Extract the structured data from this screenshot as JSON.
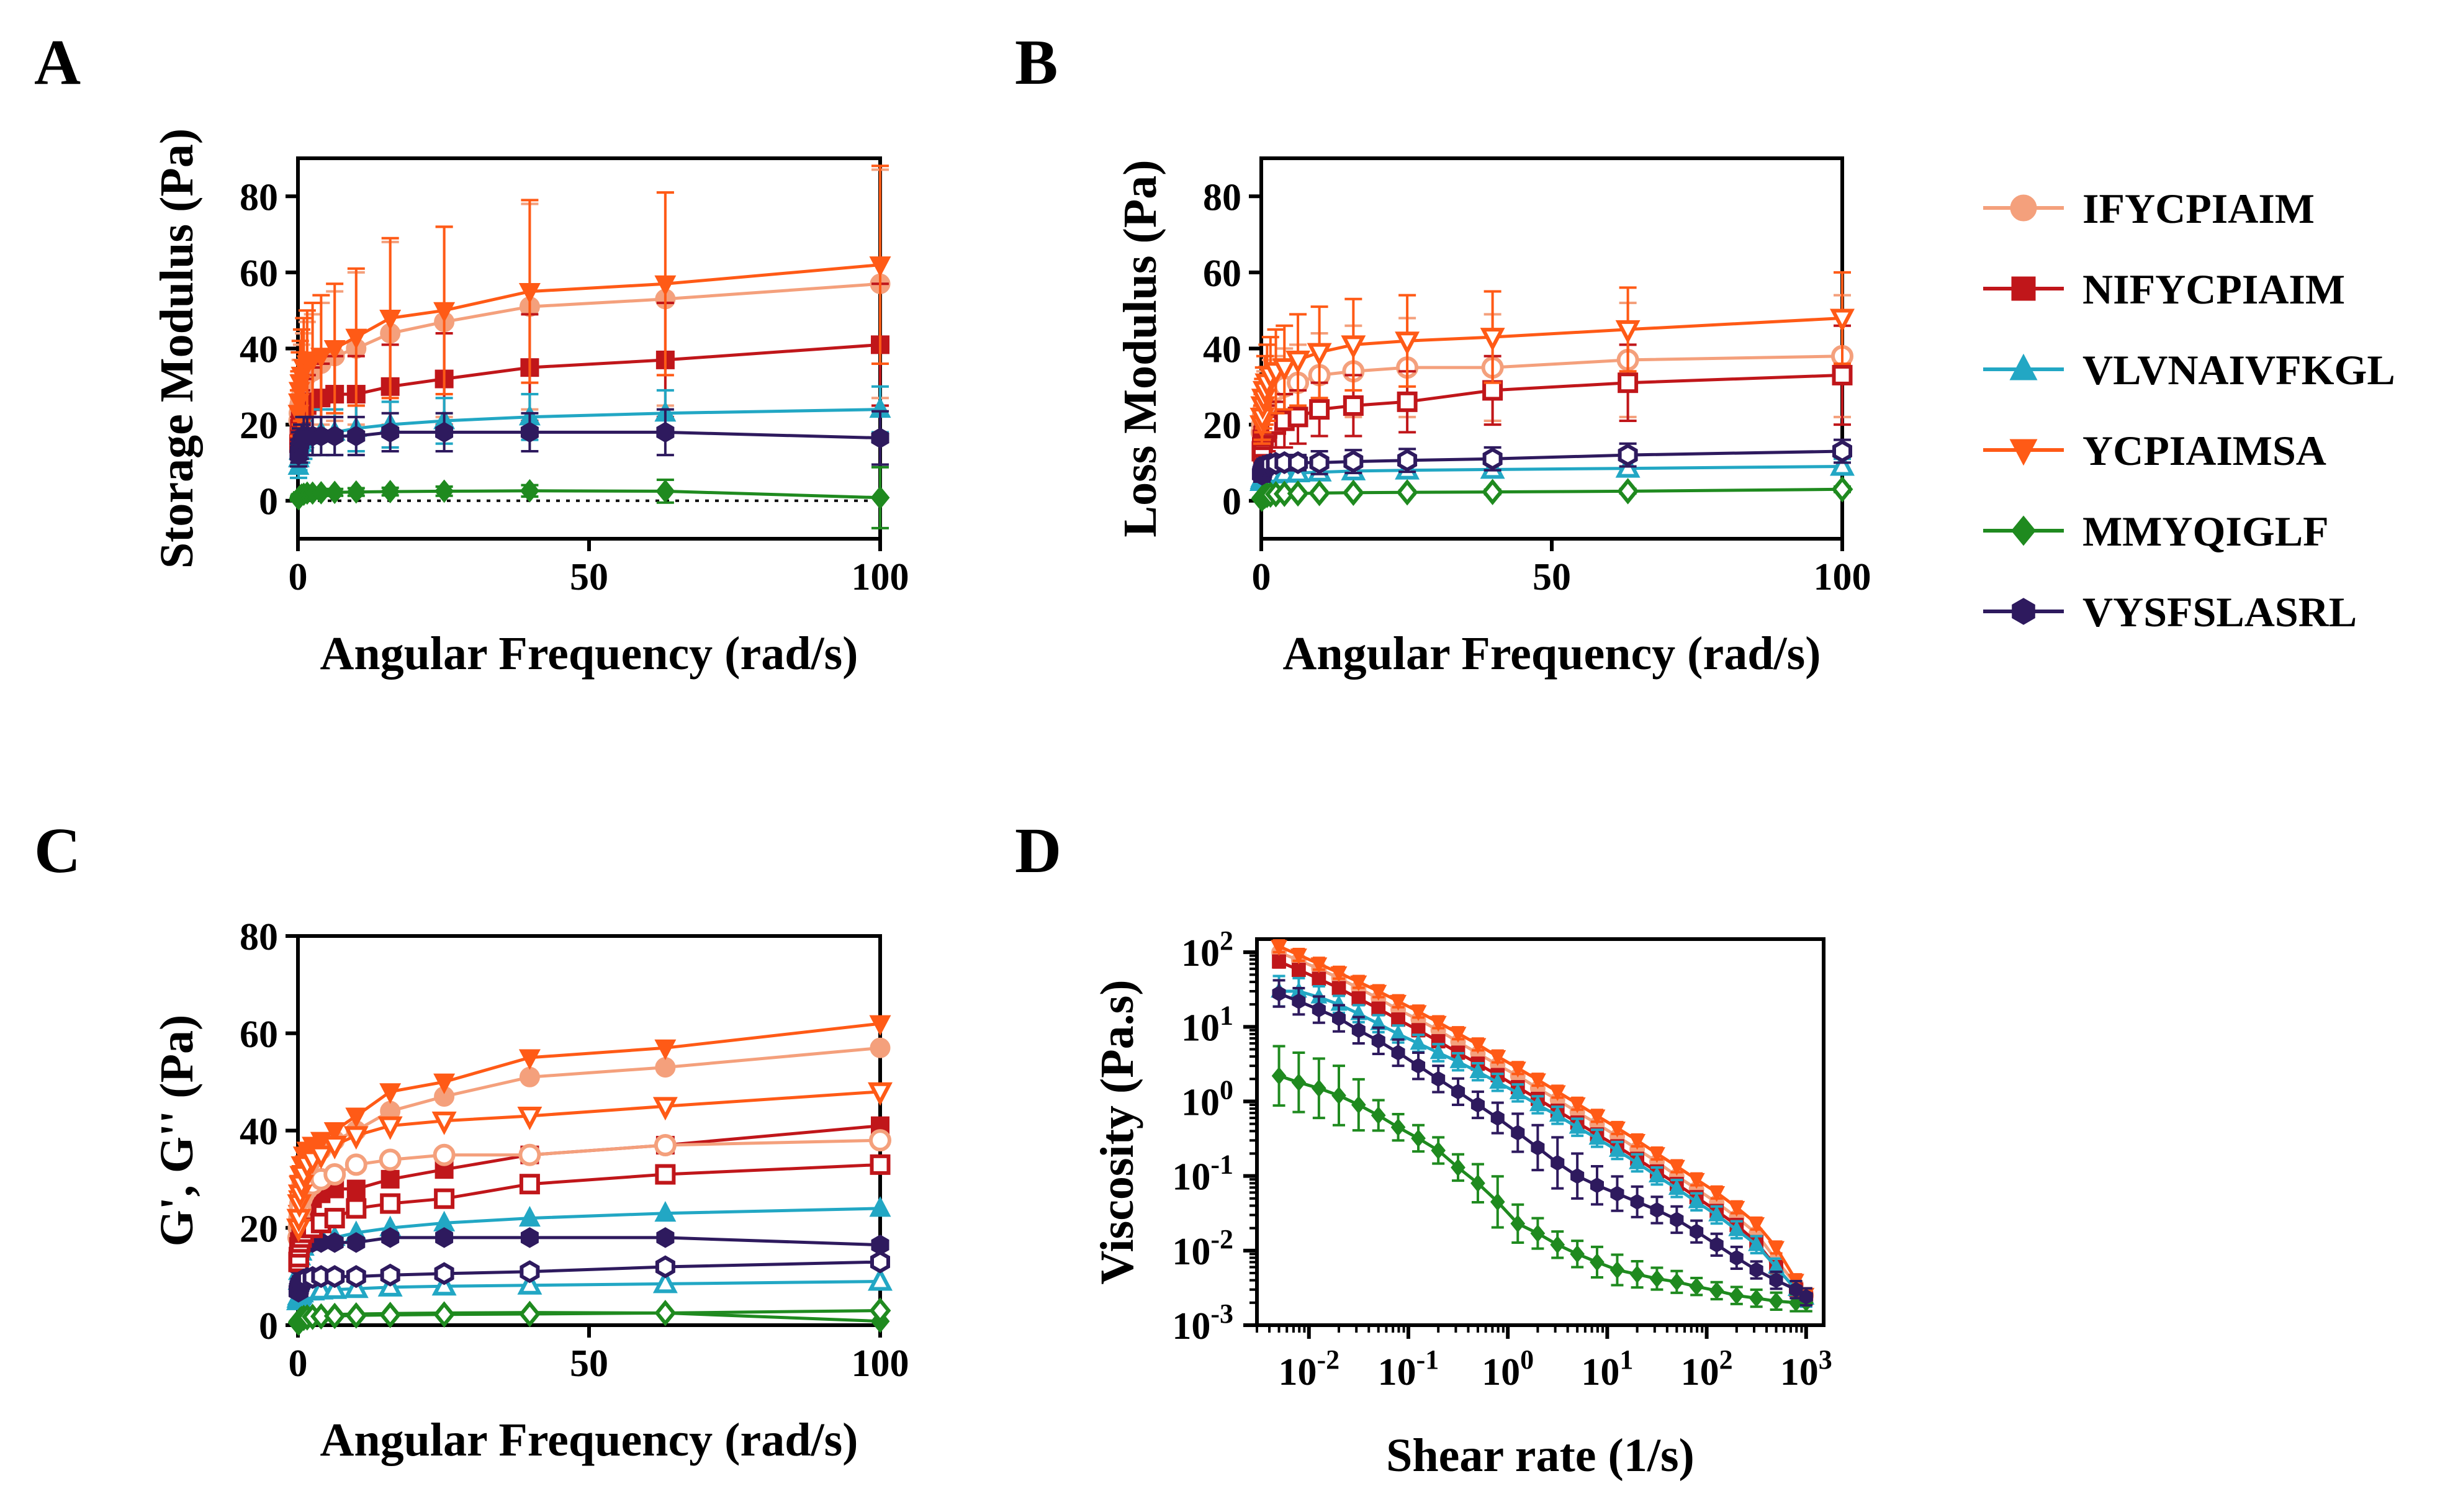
{
  "colors": {
    "IFYCPIAIM": "#f4a07c",
    "NIFYCPIAIM": "#c0161a",
    "VLVNAIVFKGL": "#22a7c4",
    "YCPIAIMSA": "#ff5a16",
    "MMYQIGLF": "#1f8a1f",
    "VYSFSLASRL": "#2e1a5e"
  },
  "legend": [
    {
      "name": "IFYCPIAIM",
      "marker": "circle"
    },
    {
      "name": "NIFYCPIAIM",
      "marker": "square"
    },
    {
      "name": "VLVNAIVFKGL",
      "marker": "triangle-up"
    },
    {
      "name": "YCPIAIMSA",
      "marker": "triangle-down"
    },
    {
      "name": "MMYQIGLF",
      "marker": "diamond"
    },
    {
      "name": "VYSFSLASRL",
      "marker": "hexagon"
    }
  ],
  "chart_data": [
    {
      "panel": "A",
      "type": "line",
      "xlabel": "Angular Frequency (rad/s)",
      "ylabel": "Storage Modulus (Pa)",
      "xlim": [
        0,
        100
      ],
      "ylim": [
        -10,
        90
      ],
      "xticks": [
        0,
        50,
        100
      ],
      "yticks": [
        0,
        20,
        40,
        60,
        80
      ],
      "zero_line": true,
      "x": [
        0.1,
        0.158,
        0.251,
        0.398,
        0.631,
        1.0,
        1.585,
        2.512,
        3.981,
        6.31,
        10,
        15.85,
        25.12,
        39.81,
        63.1,
        100
      ],
      "series": [
        {
          "name": "IFYCPIAIM",
          "filled": true,
          "values": [
            21,
            23,
            25,
            27,
            29,
            31,
            33,
            34,
            36,
            38,
            40,
            44,
            47,
            51,
            53,
            57
          ],
          "errors": [
            5,
            6,
            8,
            10,
            12,
            13,
            14,
            15,
            16,
            17,
            20,
            24,
            25,
            27,
            28,
            30
          ]
        },
        {
          "name": "NIFYCPIAIM",
          "filled": true,
          "values": [
            15,
            17,
            19,
            21,
            22,
            24,
            25,
            26,
            27,
            28,
            28,
            30,
            32,
            35,
            37,
            41
          ],
          "errors": [
            4,
            5,
            5,
            6,
            7,
            8,
            8,
            9,
            9,
            10,
            10,
            11,
            12,
            14,
            15,
            16
          ]
        },
        {
          "name": "VLVNAIVFKGL",
          "filled": true,
          "values": [
            9,
            11,
            13,
            14,
            15,
            16,
            17,
            17,
            18,
            18,
            19,
            20,
            21,
            22,
            23,
            24
          ],
          "errors": [
            3,
            3,
            4,
            4,
            5,
            5,
            5,
            5,
            6,
            6,
            6,
            6,
            6,
            6,
            6,
            6
          ]
        },
        {
          "name": "YCPIAIMSA",
          "filled": true,
          "values": [
            23,
            26,
            29,
            31,
            33,
            35,
            36,
            37,
            38,
            40,
            43,
            48,
            50,
            55,
            57,
            62
          ],
          "errors": [
            6,
            8,
            10,
            11,
            12,
            13,
            14,
            15,
            16,
            17,
            18,
            21,
            22,
            24,
            24,
            26
          ]
        },
        {
          "name": "MMYQIGLF",
          "filled": true,
          "values": [
            0.5,
            0.8,
            1,
            1.2,
            1.5,
            1.7,
            2,
            2,
            2.1,
            2.2,
            2.3,
            2.4,
            2.5,
            2.6,
            2.5,
            0.8
          ],
          "errors": [
            0.5,
            0.5,
            0.6,
            0.6,
            0.7,
            0.7,
            0.7,
            0.8,
            0.8,
            0.9,
            1,
            1,
            1.2,
            1.5,
            3,
            8
          ]
        },
        {
          "name": "VYSFSLASRL",
          "filled": true,
          "values": [
            12,
            13,
            14,
            15,
            16,
            17,
            17,
            17,
            17,
            17,
            17,
            18,
            18,
            18,
            18,
            16.5
          ],
          "errors": [
            3,
            3,
            4,
            4,
            4,
            5,
            5,
            5,
            5,
            5,
            5,
            5,
            5,
            5,
            6,
            7
          ]
        }
      ]
    },
    {
      "panel": "B",
      "type": "line",
      "xlabel": "Angular Frequency (rad/s)",
      "ylabel": "Loss Modulus (Pa)",
      "xlim": [
        0,
        100
      ],
      "ylim": [
        -10,
        90
      ],
      "xticks": [
        0,
        50,
        100
      ],
      "yticks": [
        0,
        20,
        40,
        60,
        80
      ],
      "zero_line": false,
      "x": [
        0.1,
        0.158,
        0.251,
        0.398,
        0.631,
        1.0,
        1.585,
        2.512,
        3.981,
        6.31,
        10,
        15.85,
        25.12,
        39.81,
        63.1,
        100
      ],
      "series": [
        {
          "name": "IFYCPIAIM",
          "filled": false,
          "values": [
            18,
            20,
            22,
            24,
            26,
            27,
            28,
            29,
            30,
            31,
            33,
            34,
            35,
            35,
            37,
            38
          ],
          "errors": [
            4,
            5,
            6,
            7,
            8,
            8,
            9,
            9,
            10,
            10,
            11,
            12,
            13,
            14,
            15,
            16
          ]
        },
        {
          "name": "NIFYCPIAIM",
          "filled": false,
          "values": [
            13,
            14,
            16,
            17,
            18,
            19,
            20,
            20,
            21,
            22,
            24,
            25,
            26,
            29,
            31,
            33
          ],
          "errors": [
            3,
            4,
            4,
            5,
            5,
            6,
            6,
            6,
            7,
            7,
            7,
            8,
            8,
            9,
            10,
            13
          ]
        },
        {
          "name": "VLVNAIVFKGL",
          "filled": false,
          "values": [
            5,
            5.5,
            6,
            6.3,
            6.6,
            7,
            7,
            7,
            7.2,
            7.3,
            7.5,
            7.8,
            8,
            8.2,
            8.5,
            9
          ],
          "errors": [
            2,
            2,
            2,
            2,
            2,
            2,
            2,
            2,
            2,
            2,
            2,
            2,
            2,
            2,
            2,
            2
          ]
        },
        {
          "name": "YCPIAIMSA",
          "filled": false,
          "values": [
            20,
            22,
            25,
            27,
            29,
            31,
            33,
            34,
            35,
            37,
            39,
            41,
            42,
            43,
            45,
            48
          ],
          "errors": [
            5,
            6,
            7,
            8,
            9,
            10,
            10,
            11,
            11,
            12,
            12,
            12,
            12,
            12,
            11,
            12
          ]
        },
        {
          "name": "MMYQIGLF",
          "filled": false,
          "values": [
            0.5,
            0.7,
            0.9,
            1.1,
            1.3,
            1.5,
            1.6,
            1.7,
            1.8,
            1.9,
            2,
            2.1,
            2.2,
            2.3,
            2.5,
            3
          ],
          "errors": [
            0.3,
            0.3,
            0.3,
            0.4,
            0.4,
            0.4,
            0.4,
            0.4,
            0.5,
            0.5,
            0.5,
            0.5,
            0.5,
            0.6,
            0.6,
            0.7
          ]
        },
        {
          "name": "VYSFSLASRL",
          "filled": false,
          "values": [
            7,
            7.5,
            8,
            8.5,
            9,
            9.3,
            9.6,
            9.8,
            10,
            10,
            10,
            10.3,
            10.6,
            11,
            12,
            13
          ],
          "errors": [
            2,
            2,
            2,
            2,
            2,
            2,
            2,
            2,
            2,
            2,
            3,
            3,
            3,
            3,
            3,
            3
          ]
        }
      ]
    },
    {
      "panel": "C",
      "type": "line",
      "xlabel": "Angular Frequency (rad/s)",
      "ylabel": "G', G'' (Pa)",
      "xlim": [
        0,
        100
      ],
      "ylim": [
        0,
        80
      ],
      "xticks": [
        0,
        50,
        100
      ],
      "yticks": [
        0,
        20,
        40,
        60,
        80
      ],
      "note": "G' (filled markers) and G'' (open markers) overlaid for each peptide"
    },
    {
      "panel": "D",
      "type": "line",
      "xlabel": "Shear rate (1/s)",
      "ylabel": "Viscosity (Pa.s)",
      "xscale": "log",
      "yscale": "log",
      "xlim": [
        0.003,
        1500
      ],
      "ylim": [
        0.001,
        150
      ],
      "xtick_labels": [
        "10^-2",
        "10^-1",
        "10^0",
        "10^1",
        "10^2",
        "10^3"
      ],
      "ytick_labels": [
        "10^-3",
        "10^-2",
        "10^-1",
        "10^0",
        "10^1",
        "10^2"
      ],
      "x": [
        0.005,
        0.0079,
        0.0126,
        0.02,
        0.0316,
        0.05,
        0.079,
        0.126,
        0.2,
        0.316,
        0.5,
        0.79,
        1.26,
        2.0,
        3.16,
        5.0,
        7.9,
        12.6,
        20,
        31.6,
        50,
        79,
        126,
        200,
        316,
        500,
        790,
        1000
      ],
      "series": [
        {
          "name": "IFYCPIAIM",
          "values": [
            100,
            78,
            60,
            45,
            33,
            24,
            17,
            12.5,
            9,
            6.3,
            4.4,
            3.1,
            2.2,
            1.5,
            1.05,
            0.72,
            0.5,
            0.34,
            0.23,
            0.155,
            0.1,
            0.067,
            0.044,
            0.028,
            0.017,
            0.0075,
            0.0035,
            0.0025
          ],
          "errors_frac": [
            0.1,
            0.1,
            0.1,
            0.1,
            0.1,
            0.1,
            0.1,
            0.1,
            0.1,
            0.1,
            0.1,
            0.1,
            0.1,
            0.1,
            0.1,
            0.1,
            0.1,
            0.1,
            0.1,
            0.1,
            0.1,
            0.1,
            0.1,
            0.1,
            0.1,
            0.1,
            0.1,
            0.1
          ]
        },
        {
          "name": "NIFYCPIAIM",
          "values": [
            75,
            58,
            44,
            33,
            24,
            17.5,
            12.5,
            9,
            6.4,
            4.5,
            3.2,
            2.25,
            1.55,
            1.08,
            0.75,
            0.52,
            0.36,
            0.25,
            0.17,
            0.115,
            0.078,
            0.052,
            0.034,
            0.022,
            0.013,
            0.006,
            0.003,
            0.0023
          ],
          "errors_frac": [
            0.2,
            0.2,
            0.2,
            0.2,
            0.2,
            0.2,
            0.2,
            0.2,
            0.2,
            0.2,
            0.2,
            0.2,
            0.2,
            0.2,
            0.2,
            0.2,
            0.2,
            0.2,
            0.2,
            0.2,
            0.2,
            0.2,
            0.2,
            0.2,
            0.2,
            0.2,
            0.2,
            0.2
          ]
        },
        {
          "name": "VLVNAIVFKGL",
          "values": [
            30,
            30,
            25,
            20,
            15,
            11,
            8,
            6,
            4.5,
            3.4,
            2.5,
            1.8,
            1.3,
            0.9,
            0.65,
            0.45,
            0.32,
            0.22,
            0.15,
            0.1,
            0.068,
            0.045,
            0.03,
            0.019,
            0.012,
            0.006,
            0.003,
            0.0023
          ],
          "errors_frac": [
            0.6,
            0.5,
            0.4,
            0.3,
            0.3,
            0.3,
            0.3,
            0.3,
            0.3,
            0.3,
            0.3,
            0.3,
            0.3,
            0.3,
            0.3,
            0.3,
            0.3,
            0.3,
            0.3,
            0.3,
            0.3,
            0.3,
            0.3,
            0.3,
            0.3,
            0.3,
            0.3,
            0.3
          ]
        },
        {
          "name": "YCPIAIMSA",
          "values": [
            120,
            92,
            70,
            53,
            40,
            30,
            22,
            16,
            11.5,
            8.2,
            5.8,
            4.0,
            2.8,
            1.95,
            1.35,
            0.93,
            0.64,
            0.44,
            0.3,
            0.2,
            0.135,
            0.09,
            0.06,
            0.038,
            0.023,
            0.011,
            0.004,
            0.0026
          ],
          "errors_frac": [
            0.2,
            0.2,
            0.2,
            0.2,
            0.2,
            0.2,
            0.2,
            0.2,
            0.2,
            0.2,
            0.2,
            0.2,
            0.2,
            0.2,
            0.2,
            0.2,
            0.2,
            0.2,
            0.2,
            0.2,
            0.2,
            0.2,
            0.2,
            0.2,
            0.2,
            0.2,
            0.2,
            0.2
          ]
        },
        {
          "name": "MMYQIGLF",
          "values": [
            2.2,
            1.8,
            1.5,
            1.2,
            0.9,
            0.65,
            0.45,
            0.32,
            0.22,
            0.13,
            0.08,
            0.045,
            0.023,
            0.017,
            0.012,
            0.009,
            0.007,
            0.0055,
            0.0048,
            0.0042,
            0.0038,
            0.0033,
            0.0029,
            0.0025,
            0.0023,
            0.0021,
            0.002,
            0.002
          ],
          "errors_frac": [
            1.5,
            1.5,
            1.5,
            1.5,
            1.2,
            0.6,
            0.5,
            0.5,
            0.5,
            0.5,
            0.8,
            1.2,
            0.8,
            0.6,
            0.5,
            0.5,
            0.6,
            0.6,
            0.5,
            0.4,
            0.4,
            0.3,
            0.3,
            0.3,
            0.3,
            0.3,
            0.3,
            0.3
          ]
        },
        {
          "name": "VYSFSLASRL",
          "values": [
            28,
            22,
            17,
            13,
            9,
            6.5,
            4.5,
            3,
            2,
            1.35,
            0.9,
            0.6,
            0.38,
            0.24,
            0.15,
            0.1,
            0.075,
            0.058,
            0.045,
            0.035,
            0.026,
            0.018,
            0.012,
            0.008,
            0.0055,
            0.004,
            0.003,
            0.0024
          ],
          "errors_frac": [
            0.5,
            0.5,
            0.5,
            0.5,
            0.5,
            0.5,
            0.5,
            0.5,
            0.5,
            0.5,
            0.5,
            0.6,
            0.8,
            1.0,
            1.2,
            1.0,
            0.8,
            0.7,
            0.6,
            0.5,
            0.5,
            0.4,
            0.4,
            0.4,
            0.3,
            0.3,
            0.3,
            0.3
          ]
        }
      ]
    }
  ]
}
